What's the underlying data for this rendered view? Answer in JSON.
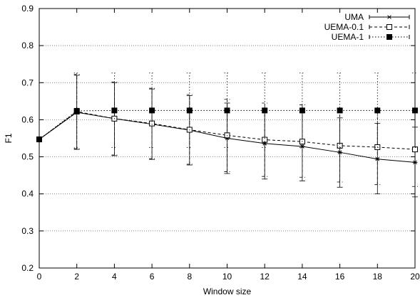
{
  "chart_data": {
    "type": "line",
    "title": "",
    "xlabel": "Window size",
    "ylabel": "F1",
    "xlim": [
      0,
      20
    ],
    "ylim": [
      0.2,
      0.9
    ],
    "xticks": [
      0,
      2,
      4,
      6,
      8,
      10,
      12,
      14,
      16,
      18,
      20
    ],
    "yticks": [
      0.2,
      0.3,
      0.4,
      0.5,
      0.6,
      0.7,
      0.8,
      0.9
    ],
    "grid": true,
    "legend_position": "top-right",
    "error_bars": true,
    "x": [
      0,
      2,
      4,
      6,
      8,
      10,
      12,
      14,
      16,
      18,
      20
    ],
    "series": [
      {
        "name": "UMA",
        "line_style": "solid",
        "marker": "asterisk",
        "values": [
          0.547,
          0.62,
          0.603,
          0.588,
          0.572,
          0.55,
          0.536,
          0.528,
          0.512,
          0.494,
          0.485
        ],
        "error_low": [
          0.547,
          0.52,
          0.503,
          0.493,
          0.478,
          0.455,
          0.44,
          0.435,
          0.418,
          0.4,
          0.392
        ],
        "error_high": [
          0.547,
          0.72,
          0.7,
          0.683,
          0.665,
          0.645,
          0.63,
          0.62,
          0.605,
          0.59,
          0.58
        ]
      },
      {
        "name": "UEMA-0.1",
        "line_style": "dashed",
        "marker": "open-square",
        "values": [
          0.547,
          0.622,
          0.603,
          0.59,
          0.573,
          0.558,
          0.546,
          0.541,
          0.53,
          0.526,
          0.52
        ],
        "error_low": [
          0.547,
          0.522,
          0.505,
          0.495,
          0.48,
          0.46,
          0.447,
          0.445,
          0.432,
          0.425,
          0.42
        ],
        "error_high": [
          0.547,
          0.722,
          0.702,
          0.685,
          0.668,
          0.655,
          0.645,
          0.64,
          0.63,
          0.625,
          0.62
        ]
      },
      {
        "name": "UEMA-1",
        "line_style": "dotted",
        "marker": "filled-square",
        "values": [
          0.547,
          0.624,
          0.625,
          0.625,
          0.625,
          0.625,
          0.625,
          0.625,
          0.625,
          0.625,
          0.625
        ],
        "error_low": [
          0.547,
          0.524,
          0.525,
          0.525,
          0.525,
          0.525,
          0.525,
          0.525,
          0.525,
          0.525,
          0.525
        ],
        "error_high": [
          0.547,
          0.726,
          0.726,
          0.726,
          0.726,
          0.726,
          0.726,
          0.726,
          0.726,
          0.726,
          0.726
        ]
      }
    ]
  }
}
